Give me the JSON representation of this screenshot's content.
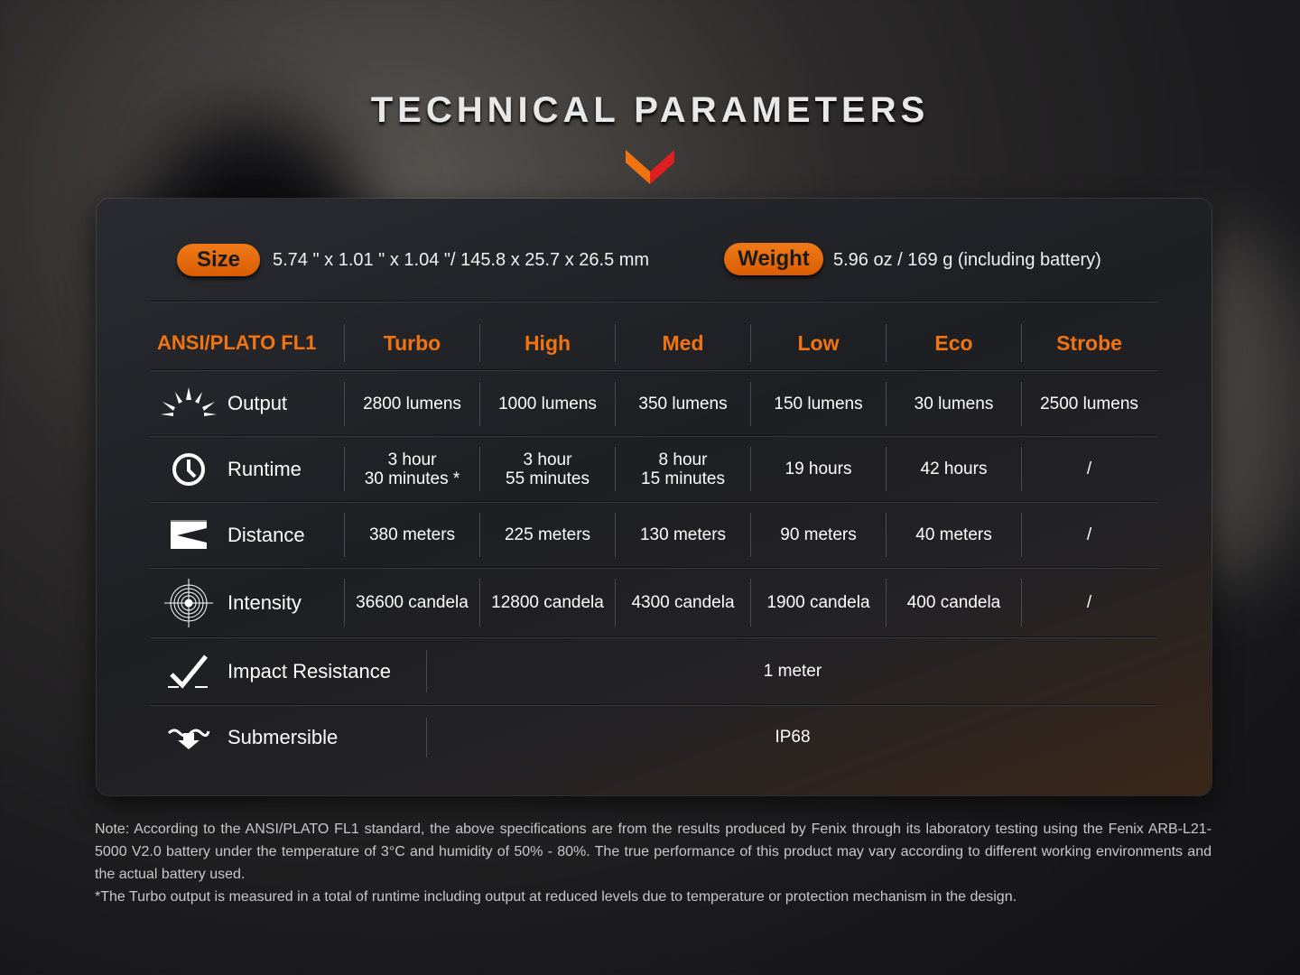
{
  "title": "TECHNICAL PARAMETERS",
  "colors": {
    "accent": "#f27410",
    "chevron_left": "#f27410",
    "chevron_right": "#e02020"
  },
  "size": {
    "label": "Size",
    "value": "5.74 \" x 1.01 \" x 1.04 \"/ 145.8 x 25.7 x 26.5 mm"
  },
  "weight": {
    "label": "Weight",
    "value": "5.96 oz / 169 g (including battery)"
  },
  "table": {
    "header": "ANSI/PLATO FL1",
    "modes": [
      "Turbo",
      "High",
      "Med",
      "Low",
      "Eco",
      "Strobe"
    ],
    "rows": [
      {
        "icon": "sun-burst-icon",
        "label": "Output",
        "values": [
          "2800 lumens",
          "1000 lumens",
          "350 lumens",
          "150 lumens",
          "30 lumens",
          "2500 lumens"
        ]
      },
      {
        "icon": "clock-icon",
        "label": "Runtime",
        "values": [
          "3 hour\n30 minutes *",
          "3 hour\n55 minutes",
          "8 hour\n15 minutes",
          "19 hours",
          "42 hours",
          "/"
        ]
      },
      {
        "icon": "beam-distance-icon",
        "label": "Distance",
        "values": [
          "380 meters",
          "225 meters",
          "130 meters",
          "90 meters",
          "40 meters",
          "/"
        ]
      },
      {
        "icon": "target-icon",
        "label": "Intensity",
        "values": [
          "36600 candela",
          "12800 candela",
          "4300 candela",
          "1900 candela",
          "400 candela",
          "/"
        ]
      }
    ],
    "wide_rows": [
      {
        "icon": "impact-check-icon",
        "label": "Impact Resistance",
        "value": "1 meter"
      },
      {
        "icon": "submersible-icon",
        "label": "Submersible",
        "value": "IP68"
      }
    ]
  },
  "note": {
    "line1": "Note: According to the ANSI/PLATO FL1 standard, the above specifications are from the results produced by Fenix through its laboratory testing using the Fenix ARB-L21-5000 V2.0 battery under the temperature of 3°C and humidity of 50% - 80%. The true performance of this product may vary according to different working environments and the actual battery used.",
    "line2": "*The Turbo output is measured in a total of runtime including output at reduced levels due to temperature or protection mechanism in the design."
  }
}
